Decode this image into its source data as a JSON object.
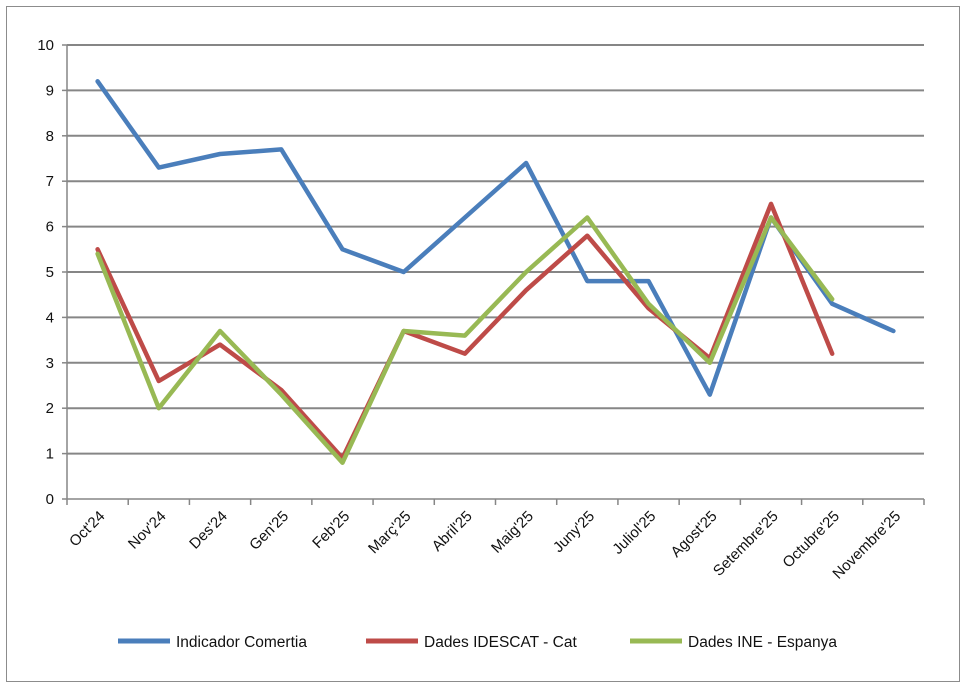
{
  "chart_data": {
    "type": "line",
    "title": "",
    "xlabel": "",
    "ylabel": "",
    "ylim": [
      0,
      10
    ],
    "yticks": [
      "0",
      "1",
      "2",
      "3",
      "4",
      "5",
      "6",
      "7",
      "8",
      "9",
      "10"
    ],
    "categories": [
      "Oct'24",
      "Nov'24",
      "Des'24",
      "Gen'25",
      "Feb'25",
      "Març'25",
      "Abril'25",
      "Maig'25",
      "Juny'25",
      "Juliol'25",
      "Agost'25",
      "Setembre'25",
      "Octubre'25",
      "Novembre'25"
    ],
    "series": [
      {
        "name": "Indicador Comertia",
        "color": "#4a7ebb",
        "values": [
          9.2,
          7.3,
          7.6,
          7.7,
          5.5,
          5.0,
          6.2,
          7.4,
          4.8,
          4.8,
          2.3,
          6.2,
          4.3,
          3.7
        ]
      },
      {
        "name": "Dades IDESCAT - Cat",
        "color": "#be4b48",
        "values": [
          5.5,
          2.6,
          3.4,
          2.4,
          0.9,
          3.7,
          3.2,
          4.6,
          5.8,
          4.2,
          3.1,
          6.5,
          3.2,
          null
        ]
      },
      {
        "name": "Dades INE - Espanya",
        "color": "#98b954",
        "values": [
          5.4,
          2.0,
          3.7,
          2.3,
          0.8,
          3.7,
          3.6,
          5.0,
          6.2,
          4.3,
          3.0,
          6.2,
          4.4,
          null
        ]
      }
    ],
    "grid": true,
    "legend_position": "bottom"
  }
}
